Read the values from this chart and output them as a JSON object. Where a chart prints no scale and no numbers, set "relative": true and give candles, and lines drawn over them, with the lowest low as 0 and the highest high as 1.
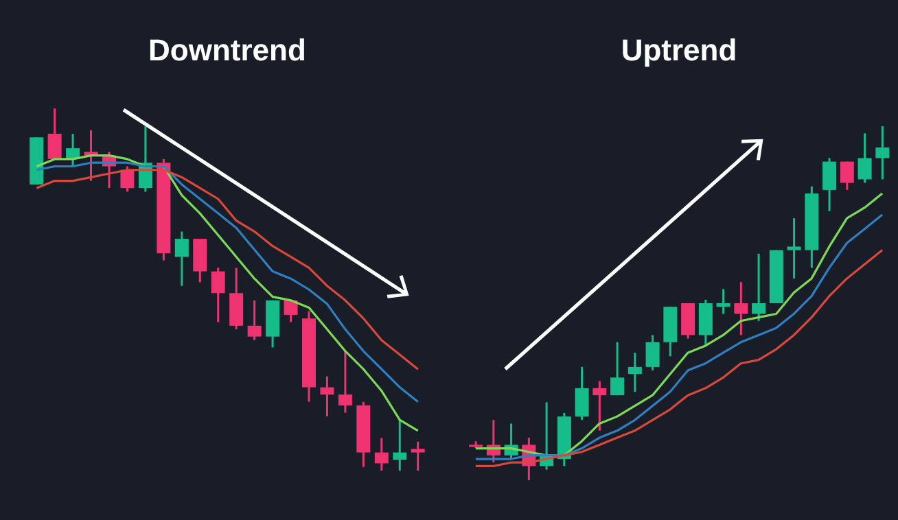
{
  "chart_data": [
    {
      "type": "candlestick",
      "title": "Downtrend",
      "relative": true,
      "categories": [
        null,
        null,
        null,
        null,
        null,
        null,
        null,
        null,
        null,
        null,
        null,
        null,
        null,
        null,
        null,
        null,
        null,
        null,
        null,
        null,
        null,
        null
      ],
      "ohlc": [
        [
          0.79,
          0.92,
          0.79,
          0.92
        ],
        [
          0.93,
          1.0,
          0.86,
          0.86
        ],
        [
          0.86,
          0.93,
          0.84,
          0.89
        ],
        [
          0.88,
          0.94,
          0.8,
          0.87
        ],
        [
          0.87,
          0.88,
          0.78,
          0.84
        ],
        [
          0.83,
          0.84,
          0.77,
          0.78
        ],
        [
          0.78,
          0.95,
          0.77,
          0.85
        ],
        [
          0.85,
          0.86,
          0.58,
          0.6
        ],
        [
          0.59,
          0.66,
          0.51,
          0.64
        ],
        [
          0.64,
          0.64,
          0.52,
          0.55
        ],
        [
          0.55,
          0.56,
          0.41,
          0.49
        ],
        [
          0.49,
          0.56,
          0.39,
          0.4
        ],
        [
          0.4,
          0.47,
          0.36,
          0.37
        ],
        [
          0.37,
          0.47,
          0.34,
          0.47
        ],
        [
          0.47,
          0.47,
          0.41,
          0.43
        ],
        [
          0.42,
          0.44,
          0.19,
          0.23
        ],
        [
          0.23,
          0.26,
          0.15,
          0.21
        ],
        [
          0.21,
          0.33,
          0.16,
          0.18
        ],
        [
          0.18,
          0.19,
          0.01,
          0.05
        ],
        [
          0.05,
          0.09,
          0.0,
          0.02
        ],
        [
          0.03,
          0.14,
          0.0,
          0.05
        ],
        [
          0.06,
          0.08,
          0.0,
          0.05
        ]
      ],
      "colors": [
        "#16bd8b",
        "#ee3370",
        "#16bd8b",
        "#ee3370",
        "#ee3370",
        "#ee3370",
        "#16bd8b",
        "#ee3370",
        "#16bd8b",
        "#ee3370",
        "#ee3370",
        "#ee3370",
        "#ee3370",
        "#16bd8b",
        "#ee3370",
        "#ee3370",
        "#ee3370",
        "#ee3370",
        "#ee3370",
        "#ee3370",
        "#16bd8b",
        "#ee3370"
      ],
      "series": [
        {
          "type": "line",
          "color": "#7ed957",
          "values": [
            0.84,
            0.86,
            0.86,
            0.87,
            0.87,
            0.86,
            0.84,
            0.84,
            0.76,
            0.71,
            0.65,
            0.59,
            0.53,
            0.48,
            0.47,
            0.45,
            0.39,
            0.33,
            0.28,
            0.22,
            0.14,
            0.11
          ]
        },
        {
          "type": "line",
          "color": "#2f7fc1",
          "values": [
            0.83,
            0.84,
            0.84,
            0.85,
            0.85,
            0.85,
            0.84,
            0.84,
            0.79,
            0.75,
            0.71,
            0.67,
            0.61,
            0.55,
            0.53,
            0.5,
            0.46,
            0.39,
            0.33,
            0.28,
            0.23,
            0.19
          ]
        },
        {
          "type": "line",
          "color": "#d9493b",
          "values": [
            0.78,
            0.8,
            0.8,
            0.81,
            0.82,
            0.83,
            0.83,
            0.83,
            0.81,
            0.78,
            0.75,
            0.69,
            0.66,
            0.62,
            0.59,
            0.56,
            0.51,
            0.47,
            0.42,
            0.36,
            0.32,
            0.28
          ]
        }
      ]
    },
    {
      "type": "candlestick",
      "title": "Uptrend",
      "relative": true,
      "categories": [
        null,
        null,
        null,
        null,
        null,
        null,
        null,
        null,
        null,
        null,
        null,
        null,
        null,
        null,
        null,
        null,
        null,
        null,
        null,
        null,
        null,
        null,
        null,
        null
      ],
      "ohlc": [
        [
          0.1,
          0.11,
          0.09,
          0.1
        ],
        [
          0.1,
          0.17,
          0.05,
          0.07
        ],
        [
          0.07,
          0.16,
          0.06,
          0.1
        ],
        [
          0.1,
          0.12,
          0.0,
          0.04
        ],
        [
          0.04,
          0.22,
          0.03,
          0.07
        ],
        [
          0.06,
          0.19,
          0.04,
          0.18
        ],
        [
          0.18,
          0.32,
          0.17,
          0.26
        ],
        [
          0.26,
          0.28,
          0.14,
          0.24
        ],
        [
          0.24,
          0.39,
          0.24,
          0.29
        ],
        [
          0.3,
          0.36,
          0.25,
          0.32
        ],
        [
          0.32,
          0.41,
          0.31,
          0.39
        ],
        [
          0.39,
          0.49,
          0.35,
          0.49
        ],
        [
          0.5,
          0.5,
          0.4,
          0.41
        ],
        [
          0.41,
          0.51,
          0.38,
          0.5
        ],
        [
          0.49,
          0.54,
          0.47,
          0.5
        ],
        [
          0.5,
          0.56,
          0.41,
          0.47
        ],
        [
          0.47,
          0.64,
          0.45,
          0.5
        ],
        [
          0.5,
          0.65,
          0.5,
          0.65
        ],
        [
          0.65,
          0.74,
          0.57,
          0.66
        ],
        [
          0.65,
          0.83,
          0.6,
          0.81
        ],
        [
          0.82,
          0.91,
          0.76,
          0.9
        ],
        [
          0.9,
          0.9,
          0.82,
          0.84
        ],
        [
          0.85,
          0.98,
          0.84,
          0.91
        ],
        [
          0.91,
          1.0,
          0.85,
          0.94
        ]
      ],
      "colors": [
        "#ee3370",
        "#ee3370",
        "#16bd8b",
        "#ee3370",
        "#16bd8b",
        "#16bd8b",
        "#16bd8b",
        "#ee3370",
        "#16bd8b",
        "#16bd8b",
        "#16bd8b",
        "#16bd8b",
        "#ee3370",
        "#16bd8b",
        "#16bd8b",
        "#ee3370",
        "#16bd8b",
        "#16bd8b",
        "#16bd8b",
        "#16bd8b",
        "#16bd8b",
        "#ee3370",
        "#16bd8b",
        "#16bd8b"
      ],
      "series": [
        {
          "type": "line",
          "color": "#7ed957",
          "values": [
            0.09,
            0.09,
            0.09,
            0.08,
            0.07,
            0.07,
            0.11,
            0.16,
            0.18,
            0.21,
            0.24,
            0.3,
            0.36,
            0.38,
            0.41,
            0.45,
            0.46,
            0.47,
            0.53,
            0.57,
            0.66,
            0.74,
            0.77,
            0.81
          ]
        },
        {
          "type": "line",
          "color": "#2f7fc1",
          "values": [
            0.06,
            0.06,
            0.06,
            0.07,
            0.07,
            0.07,
            0.09,
            0.12,
            0.14,
            0.17,
            0.21,
            0.25,
            0.31,
            0.33,
            0.36,
            0.39,
            0.41,
            0.43,
            0.47,
            0.52,
            0.6,
            0.67,
            0.71,
            0.75
          ]
        },
        {
          "type": "line",
          "color": "#d9493b",
          "values": [
            0.04,
            0.04,
            0.05,
            0.05,
            0.06,
            0.07,
            0.08,
            0.1,
            0.12,
            0.14,
            0.17,
            0.2,
            0.24,
            0.26,
            0.29,
            0.33,
            0.34,
            0.37,
            0.41,
            0.46,
            0.52,
            0.57,
            0.61,
            0.65
          ]
        }
      ]
    }
  ]
}
